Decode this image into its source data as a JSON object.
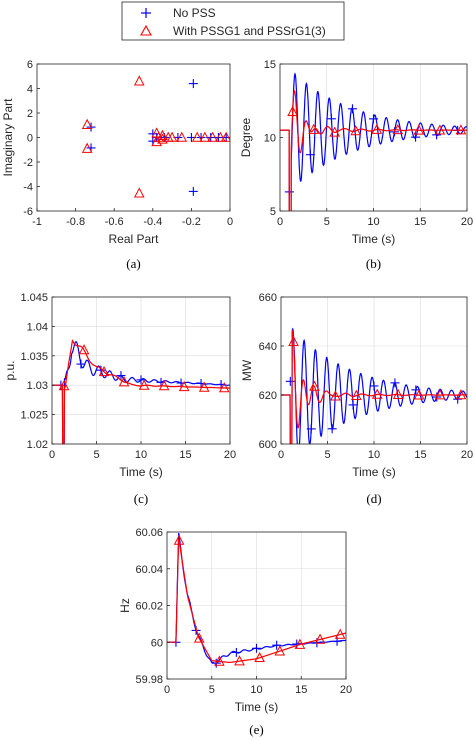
{
  "legend": {
    "entries": [
      {
        "label": "No PSS",
        "marker": "plus",
        "color": "#0000ff"
      },
      {
        "label": "With PSSG1 and PSSrG1(3)",
        "marker": "triangle",
        "color": "#ff0000"
      }
    ]
  },
  "colors": {
    "no_pss": "#0000ff",
    "with_pss": "#ff0000",
    "axis": "#262626"
  },
  "chart_data": [
    {
      "id": "a",
      "type": "scatter",
      "caption": "(a)",
      "xlabel": "Real Part",
      "ylabel": "Imaginary Part",
      "xlim": [
        -1,
        0
      ],
      "ylim": [
        -6,
        6
      ],
      "xticks": [
        -1,
        -0.8,
        -0.6,
        -0.4,
        -0.2,
        0
      ],
      "xtick_labels": [
        "-1",
        "-0.8",
        "-0.6",
        "-0.4",
        "-0.2",
        "0"
      ],
      "yticks": [
        -6,
        -4,
        -2,
        0,
        2,
        4,
        6
      ],
      "ytick_labels": [
        "-6",
        "-4",
        "-2",
        "0",
        "2",
        "4",
        "6"
      ],
      "grid": false,
      "series": [
        {
          "name": "No PSS",
          "marker": "plus",
          "points": [
            [
              -0.72,
              0.85
            ],
            [
              -0.72,
              -0.85
            ],
            [
              -0.19,
              4.4
            ],
            [
              -0.19,
              -4.4
            ],
            [
              -0.4,
              0.3
            ],
            [
              -0.4,
              -0.3
            ],
            [
              -0.38,
              0
            ],
            [
              -0.34,
              0
            ],
            [
              -0.27,
              0
            ],
            [
              -0.2,
              0
            ],
            [
              -0.15,
              0
            ],
            [
              -0.1,
              0
            ],
            [
              -0.06,
              0
            ],
            [
              -0.02,
              0
            ]
          ]
        },
        {
          "name": "With PSSG1 and PSSrG1(3)",
          "marker": "triangle",
          "points": [
            [
              -0.74,
              1.05
            ],
            [
              -0.74,
              -0.9
            ],
            [
              -0.47,
              4.6
            ],
            [
              -0.47,
              -4.55
            ],
            [
              -0.38,
              0.35
            ],
            [
              -0.38,
              -0.35
            ],
            [
              -0.37,
              0
            ],
            [
              -0.35,
              0.15
            ],
            [
              -0.35,
              -0.15
            ],
            [
              -0.32,
              0
            ],
            [
              -0.3,
              0
            ],
            [
              -0.25,
              0
            ],
            [
              -0.17,
              0
            ],
            [
              -0.13,
              0
            ],
            [
              -0.09,
              0
            ],
            [
              -0.05,
              0
            ],
            [
              -0.02,
              0
            ]
          ]
        }
      ]
    },
    {
      "id": "b",
      "type": "line",
      "caption": "(b)",
      "xlabel": "Time (s)",
      "ylabel": "Degree",
      "xlim": [
        0,
        20
      ],
      "ylim": [
        5,
        15
      ],
      "xticks": [
        0,
        5,
        10,
        15,
        20
      ],
      "xtick_labels": [
        "0",
        "5",
        "10",
        "15",
        "20"
      ],
      "yticks": [
        5,
        10,
        15
      ],
      "ytick_labels": [
        "5",
        "10",
        "15"
      ],
      "grid": true,
      "series": [
        {
          "name": "No PSS",
          "start": 10.5,
          "t0": 1,
          "kick": 0,
          "osc": [
            {
              "a": 4.2,
              "f": 0.82,
              "tau": 6.5,
              "ph": -1.5708
            }
          ]
        },
        {
          "name": "With PSSG1 and PSSrG1(3)",
          "start": 10.5,
          "t0": 1,
          "kick": 0,
          "osc": [
            {
              "a": 4.0,
              "f": 0.85,
              "tau": 1.0,
              "ph": -1.5708
            },
            {
              "a": 0.5,
              "f": 0.55,
              "tau": 4.0,
              "ph": 0
            }
          ]
        }
      ]
    },
    {
      "id": "c",
      "type": "line",
      "caption": "(c)",
      "xlabel": "Time (s)",
      "ylabel": "p.u.",
      "xlim": [
        0,
        20
      ],
      "ylim": [
        1.02,
        1.045
      ],
      "xticks": [
        0,
        5,
        10,
        15,
        20
      ],
      "xtick_labels": [
        "0",
        "5",
        "10",
        "15",
        "20"
      ],
      "yticks": [
        1.02,
        1.025,
        1.03,
        1.035,
        1.04,
        1.045
      ],
      "ytick_labels": [
        "1.02",
        "1.025",
        "1.03",
        "1.035",
        "1.04",
        "1.045"
      ],
      "grid": true,
      "series": [
        {
          "name": "No PSS",
          "start": 1.03,
          "t0": 1.2,
          "kick": 1.02,
          "base": [
            {
              "t": 1.5,
              "v": 1.029
            },
            {
              "t": 2.2,
              "v": 1.037
            },
            {
              "t": 4,
              "v": 1.033
            },
            {
              "t": 8,
              "v": 1.031
            },
            {
              "t": 20,
              "v": 1.03
            }
          ],
          "osc": [
            {
              "a": 0.0022,
              "f": 0.8,
              "tau": 4.5,
              "ph": 0
            }
          ]
        },
        {
          "name": "With PSSG1 and PSSrG1(3)",
          "start": 1.03,
          "t0": 1.2,
          "kick": 1.02,
          "base": [
            {
              "t": 1.5,
              "v": 1.029
            },
            {
              "t": 2.3,
              "v": 1.038
            },
            {
              "t": 5,
              "v": 1.033
            },
            {
              "t": 9,
              "v": 1.03
            },
            {
              "t": 20,
              "v": 1.0295
            }
          ],
          "osc": [
            {
              "a": 0.0008,
              "f": 0.55,
              "tau": 4.0,
              "ph": 0
            }
          ]
        }
      ]
    },
    {
      "id": "d",
      "type": "line",
      "caption": "(d)",
      "xlabel": "Time (s)",
      "ylabel": "MW",
      "xlim": [
        0,
        20
      ],
      "ylim": [
        600,
        660
      ],
      "xticks": [
        0,
        5,
        10,
        15,
        20
      ],
      "xtick_labels": [
        "0",
        "5",
        "10",
        "15",
        "20"
      ],
      "yticks": [
        600,
        620,
        640,
        660
      ],
      "ytick_labels": [
        "600",
        "620",
        "640",
        "660"
      ],
      "grid": true,
      "series": [
        {
          "name": "No PSS",
          "start": 620,
          "t0": 1,
          "kick": 600,
          "osc": [
            {
              "a": 28,
              "f": 0.82,
              "tau": 6.5,
              "ph": 0.2
            }
          ]
        },
        {
          "name": "With PSSG1 and PSSrG1(3)",
          "start": 620,
          "t0": 1,
          "kick": 600,
          "osc": [
            {
              "a": 30,
              "f": 0.85,
              "tau": 1.1,
              "ph": 0.2
            },
            {
              "a": 3,
              "f": 0.55,
              "tau": 4.0,
              "ph": 0
            }
          ]
        }
      ]
    },
    {
      "id": "e",
      "type": "line",
      "caption": "(e)",
      "xlabel": "Time (s)",
      "ylabel": "Hz",
      "xlim": [
        0,
        20
      ],
      "ylim": [
        59.98,
        60.06
      ],
      "xticks": [
        0,
        5,
        10,
        15,
        20
      ],
      "xtick_labels": [
        "0",
        "5",
        "10",
        "15",
        "20"
      ],
      "yticks": [
        59.98,
        60,
        60.02,
        60.04,
        60.06
      ],
      "ytick_labels": [
        "59.98",
        "60",
        "60.02",
        "60.04",
        "60.06"
      ],
      "grid": true,
      "series": [
        {
          "name": "No PSS",
          "start": 60,
          "t0": 1,
          "base": [
            {
              "t": 1.3,
              "v": 60.058
            },
            {
              "t": 2.3,
              "v": 60.025
            },
            {
              "t": 3.5,
              "v": 60.003
            },
            {
              "t": 5,
              "v": 59.988
            },
            {
              "t": 7,
              "v": 59.994
            },
            {
              "t": 12,
              "v": 59.998
            },
            {
              "t": 20,
              "v": 60.001
            }
          ],
          "osc": [
            {
              "a": 0.002,
              "f": 0.82,
              "tau": 6.0,
              "ph": 0
            }
          ]
        },
        {
          "name": "With PSSG1 and PSSrG1(3)",
          "start": 60,
          "t0": 1,
          "base": [
            {
              "t": 1.3,
              "v": 60.057
            },
            {
              "t": 2.3,
              "v": 60.025
            },
            {
              "t": 3.5,
              "v": 60.003
            },
            {
              "t": 5,
              "v": 59.99
            },
            {
              "t": 7,
              "v": 59.989
            },
            {
              "t": 10,
              "v": 59.991
            },
            {
              "t": 15,
              "v": 59.999
            },
            {
              "t": 20,
              "v": 60.005
            }
          ],
          "osc": []
        }
      ]
    }
  ]
}
